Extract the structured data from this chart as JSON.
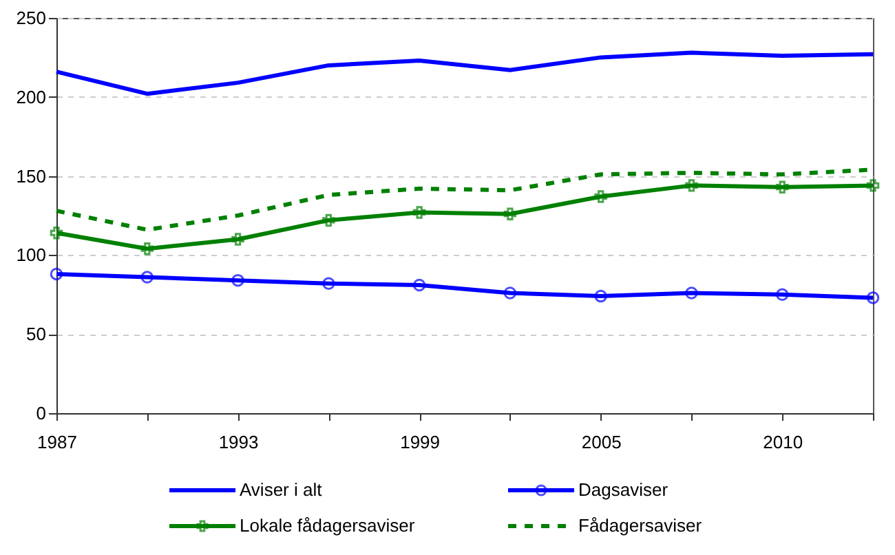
{
  "chart_data": {
    "type": "line",
    "categories": [
      "1987",
      null,
      "1993",
      null,
      "1999",
      null,
      "2005",
      null,
      "2010",
      null
    ],
    "series": [
      {
        "name": "Aviser i alt",
        "color": "#0000ff",
        "values": [
          216,
          202,
          209,
          220,
          223,
          217,
          225,
          228,
          226,
          227
        ]
      },
      {
        "name": "Dagsaviser",
        "color": "#0000ff",
        "marker": "circle",
        "values": [
          88,
          86,
          84,
          82,
          81,
          76,
          74,
          76,
          75,
          73
        ]
      },
      {
        "name": "Lokale fådagersaviser",
        "color": "#008000",
        "marker": "cross",
        "values": [
          114,
          104,
          110,
          122,
          127,
          126,
          137,
          144,
          143,
          144
        ]
      },
      {
        "name": "Fådagersaviser",
        "color": "#008000",
        "line_style": "dashed",
        "values": [
          128,
          116,
          125,
          138,
          142,
          141,
          151,
          152,
          151,
          154
        ]
      }
    ],
    "ylim": [
      0,
      250
    ],
    "yticks": [
      0,
      50,
      100,
      150,
      200,
      250
    ],
    "grid": "y",
    "legend": "bottom"
  }
}
